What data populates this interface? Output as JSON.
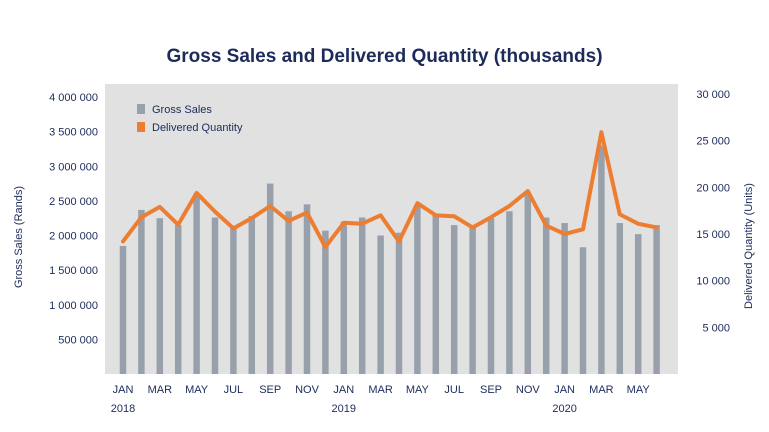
{
  "chart_data": {
    "type": "bar",
    "title": "Gross Sales and Delivered Quantity (thousands)",
    "ylabel_left": "Gross Sales (Rands)",
    "ylabel_right": "Delivered Quantity (Units)",
    "ylim_left": [
      0,
      4000000
    ],
    "ylim_right": [
      0,
      30000
    ],
    "yticks_left": [
      {
        "value": 500000,
        "label": "500 000"
      },
      {
        "value": 1000000,
        "label": "1 000 000"
      },
      {
        "value": 1500000,
        "label": "1 500 000"
      },
      {
        "value": 2000000,
        "label": "2 000 000"
      },
      {
        "value": 2500000,
        "label": "2 500 000"
      },
      {
        "value": 3000000,
        "label": "3 000 000"
      },
      {
        "value": 3500000,
        "label": "3 500 000"
      },
      {
        "value": 4000000,
        "label": "4 000 000"
      }
    ],
    "yticks_right": [
      {
        "value": 5000,
        "label": "5 000"
      },
      {
        "value": 10000,
        "label": "10 000"
      },
      {
        "value": 15000,
        "label": "15 000"
      },
      {
        "value": 20000,
        "label": "20 000"
      },
      {
        "value": 25000,
        "label": "25 000"
      },
      {
        "value": 30000,
        "label": "30 000"
      }
    ],
    "categories": [
      "Jan 2018",
      "Feb 2018",
      "Mar 2018",
      "Apr 2018",
      "May 2018",
      "Jun 2018",
      "Jul 2018",
      "Aug 2018",
      "Sep 2018",
      "Oct 2018",
      "Nov 2018",
      "Dec 2018",
      "Jan 2019",
      "Feb 2019",
      "Mar 2019",
      "Apr 2019",
      "May 2019",
      "Jun 2019",
      "Jul 2019",
      "Aug 2019",
      "Sep 2019",
      "Oct 2019",
      "Nov 2019",
      "Dec 2019",
      "Jan 2020",
      "Feb 2020",
      "Mar 2020",
      "Apr 2020",
      "May 2020",
      "Jun 2020"
    ],
    "x_tick_labels": [
      {
        "index": 0,
        "label": "JAN"
      },
      {
        "index": 2,
        "label": "MAR"
      },
      {
        "index": 4,
        "label": "MAY"
      },
      {
        "index": 6,
        "label": "JUL"
      },
      {
        "index": 8,
        "label": "SEP"
      },
      {
        "index": 10,
        "label": "NOV"
      },
      {
        "index": 12,
        "label": "JAN"
      },
      {
        "index": 14,
        "label": "MAR"
      },
      {
        "index": 16,
        "label": "MAY"
      },
      {
        "index": 18,
        "label": "JUL"
      },
      {
        "index": 20,
        "label": "SEP"
      },
      {
        "index": 22,
        "label": "NOV"
      },
      {
        "index": 24,
        "label": "JAN"
      },
      {
        "index": 26,
        "label": "MAR"
      },
      {
        "index": 28,
        "label": "MAY"
      }
    ],
    "year_labels": [
      {
        "index": 0,
        "label": "2018"
      },
      {
        "index": 12,
        "label": "2019"
      },
      {
        "index": 24,
        "label": "2020"
      }
    ],
    "series": [
      {
        "name": "Gross Sales",
        "type": "bar",
        "axis": "left",
        "color": "#98a1ab",
        "values": [
          1850000,
          2370000,
          2250000,
          2150000,
          2600000,
          2260000,
          2100000,
          2280000,
          2750000,
          2350000,
          2450000,
          2070000,
          2200000,
          2260000,
          2000000,
          2040000,
          2440000,
          2300000,
          2150000,
          2120000,
          2250000,
          2350000,
          2620000,
          2260000,
          2180000,
          1830000,
          3300000,
          2180000,
          2020000,
          2150000
        ]
      },
      {
        "name": "Delivered Quantity",
        "type": "line",
        "axis": "right",
        "color": "#ed7d31",
        "values": [
          14200,
          16800,
          17900,
          16000,
          19400,
          17400,
          15600,
          16700,
          18000,
          16400,
          17300,
          13600,
          16200,
          16100,
          17000,
          14200,
          18300,
          17000,
          16900,
          15700,
          16800,
          18000,
          19600,
          15900,
          15000,
          15500,
          25900,
          17100,
          16100,
          15700
        ]
      }
    ],
    "legend_placement": "top-left",
    "grid": false,
    "plot_background": "#e1e1e1"
  }
}
